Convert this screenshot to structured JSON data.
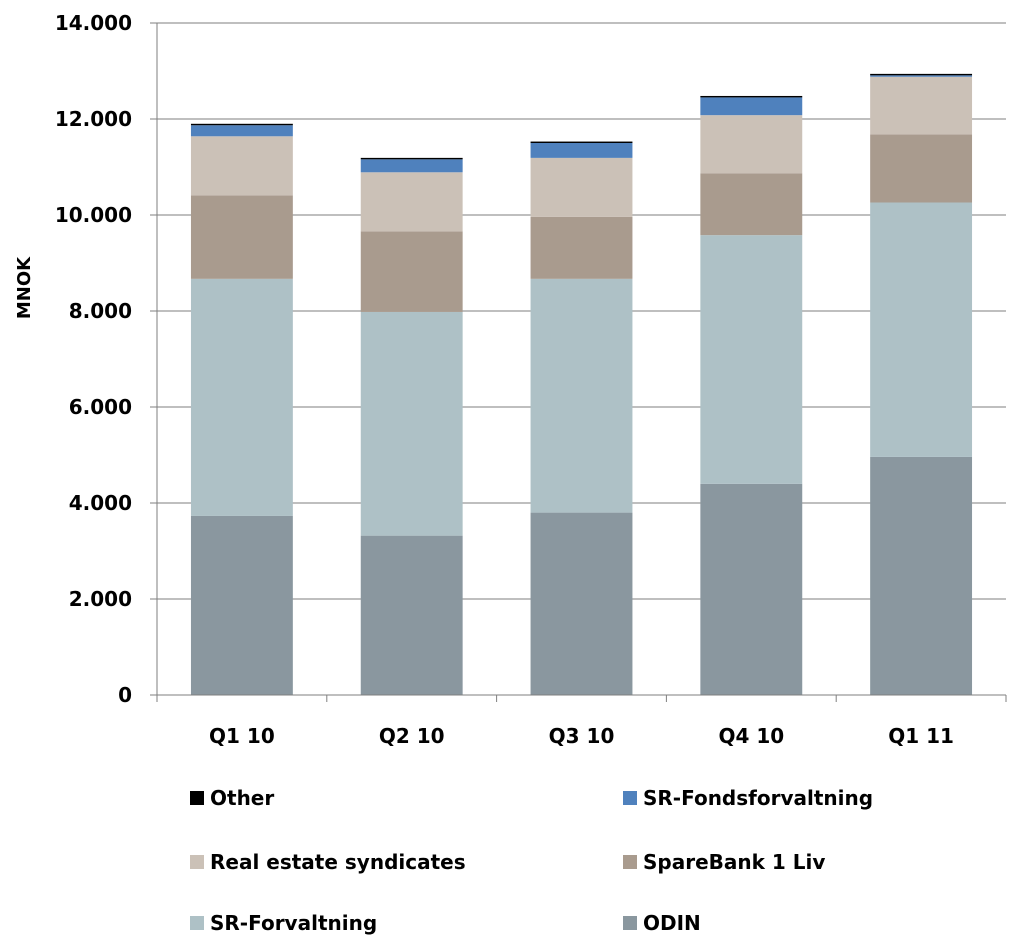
{
  "chart_data": {
    "type": "bar",
    "stacked": true,
    "ylabel": "MNOK",
    "xlabel": "",
    "ylim": [
      0,
      14000
    ],
    "yticks": [
      0,
      2000,
      4000,
      6000,
      8000,
      10000,
      12000,
      14000
    ],
    "ytick_labels": [
      "0",
      "2.000",
      "4.000",
      "6.000",
      "8.000",
      "10.000",
      "12.000",
      "14.000"
    ],
    "categories": [
      "Q1 10",
      "Q2 10",
      "Q3 10",
      "Q4 10",
      "Q1 11"
    ],
    "grid": true,
    "legend_placement": "bottom",
    "series": [
      {
        "name": "ODIN",
        "color": "#8A979F",
        "values": [
          3730,
          3320,
          3800,
          4400,
          4960
        ]
      },
      {
        "name": "SR-Forvaltning",
        "color": "#AEC1C6",
        "values": [
          4940,
          4660,
          4870,
          5180,
          5300
        ]
      },
      {
        "name": "SpareBank 1 Liv",
        "color": "#A99B8E",
        "values": [
          1740,
          1680,
          1290,
          1290,
          1420
        ]
      },
      {
        "name": "Real estate syndicates",
        "color": "#CBC1B7",
        "values": [
          1230,
          1230,
          1230,
          1210,
          1200
        ]
      },
      {
        "name": "SR-Fondsforvaltning",
        "color": "#4F81BD",
        "values": [
          230,
          270,
          310,
          370,
          30
        ]
      },
      {
        "name": "Other",
        "color": "#000000",
        "values": [
          30,
          30,
          30,
          30,
          30
        ]
      }
    ],
    "legend_order": [
      "Other",
      "SR-Fondsforvaltning",
      "Real estate syndicates",
      "SpareBank 1 Liv",
      "SR-Forvaltning",
      "ODIN"
    ]
  }
}
